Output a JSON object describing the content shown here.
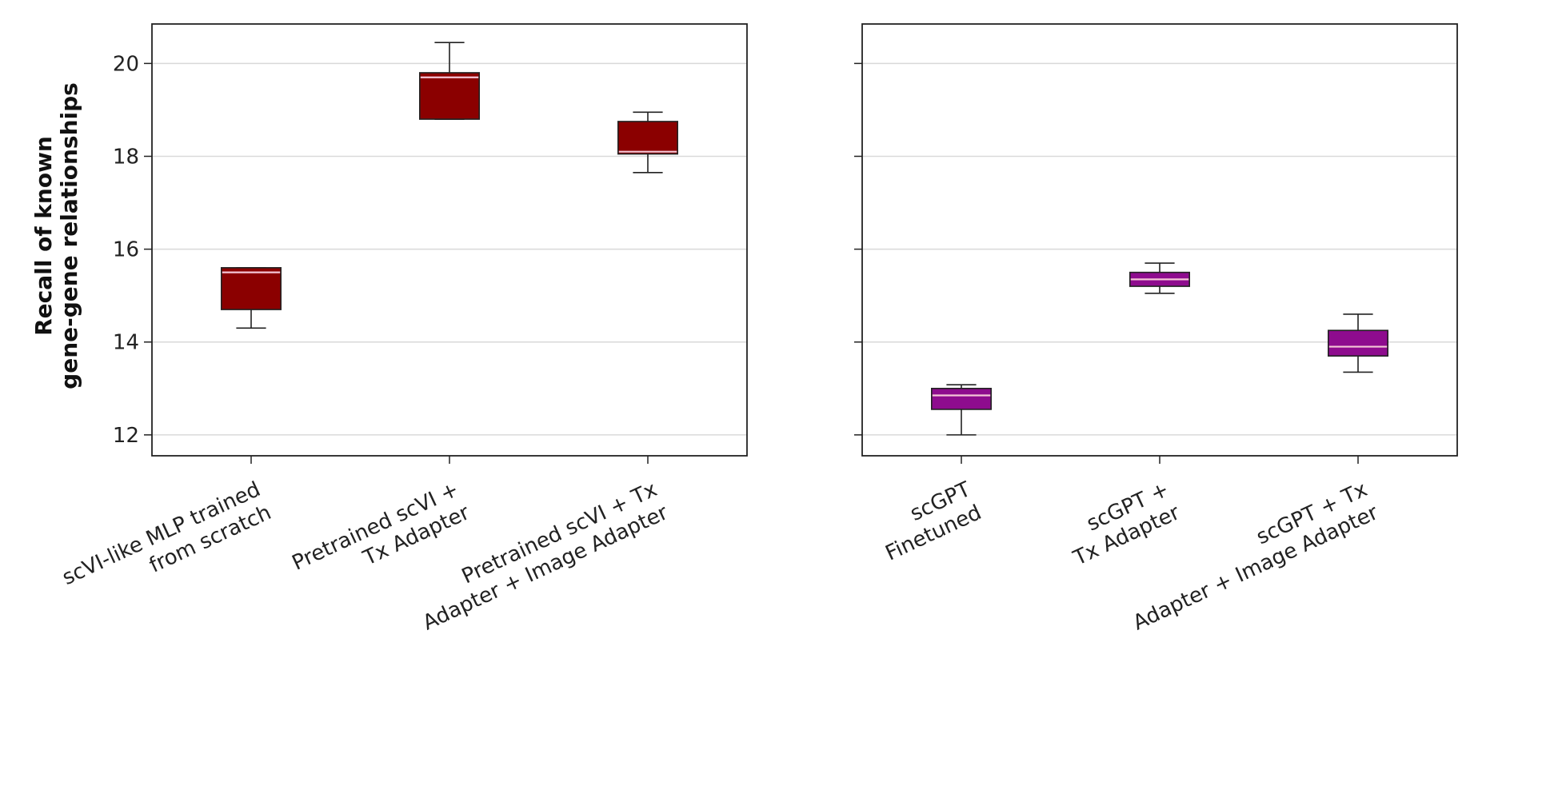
{
  "ylabel": [
    "Recall of known",
    "gene-gene relationships"
  ],
  "colors": {
    "left_box": "#8b0000",
    "right_box": "#8e0c8e",
    "median_line": "#f4c6d6",
    "grid": "#d9d9d9",
    "axes": "#222222"
  },
  "chart_data": [
    {
      "type": "box",
      "ylabel": "Recall of known gene-gene relationships",
      "ylim": [
        11.55,
        20.85
      ],
      "yticks": [
        12,
        14,
        16,
        18,
        20
      ],
      "grid": "horizontal",
      "categories": [
        {
          "label_lines": [
            "scVI-like MLP trained",
            "from scratch"
          ],
          "whisker_low": 14.3,
          "q1": 14.7,
          "median": 15.5,
          "q3": 15.6,
          "whisker_high": 15.6
        },
        {
          "label_lines": [
            "Pretrained scVI +",
            "Tx Adapter"
          ],
          "whisker_low": 18.8,
          "q1": 18.8,
          "median": 19.7,
          "q3": 19.8,
          "whisker_high": 20.45
        },
        {
          "label_lines": [
            "Pretrained scVI + Tx",
            "Adapter + Image Adapter"
          ],
          "whisker_low": 17.65,
          "q1": 18.05,
          "median": 18.1,
          "q3": 18.75,
          "whisker_high": 18.95
        }
      ]
    },
    {
      "type": "box",
      "ylim": [
        11.55,
        20.85
      ],
      "yticks": [
        12,
        14,
        16,
        18,
        20
      ],
      "grid": "horizontal",
      "categories": [
        {
          "label_lines": [
            "scGPT",
            "Finetuned"
          ],
          "whisker_low": 12.0,
          "q1": 12.55,
          "median": 12.85,
          "q3": 13.0,
          "whisker_high": 13.08
        },
        {
          "label_lines": [
            "scGPT +",
            "Tx Adapter"
          ],
          "whisker_low": 15.05,
          "q1": 15.2,
          "median": 15.35,
          "q3": 15.5,
          "whisker_high": 15.7
        },
        {
          "label_lines": [
            "scGPT + Tx",
            "Adapter + Image Adapter"
          ],
          "whisker_low": 13.35,
          "q1": 13.7,
          "median": 13.9,
          "q3": 14.25,
          "whisker_high": 14.6
        }
      ]
    }
  ]
}
